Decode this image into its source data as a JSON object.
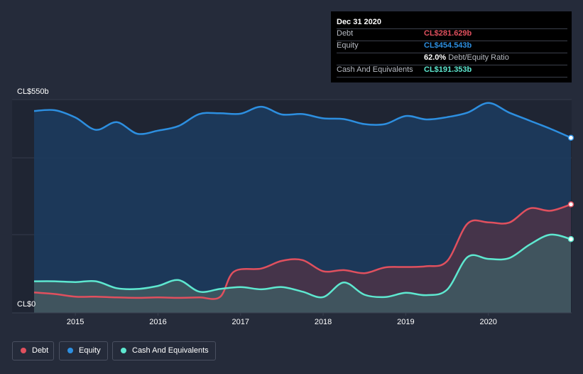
{
  "tooltip": {
    "date": "Dec 31 2020",
    "rows": [
      {
        "label": "Debt",
        "value": "CL$281.629b",
        "color": "#e0505e"
      },
      {
        "label": "Equity",
        "value": "CL$454.543b",
        "color": "#2d8fe0"
      },
      {
        "label": "",
        "value": "62.0%",
        "sub": "Debt/Equity Ratio",
        "color": "#ffffff"
      },
      {
        "label": "Cash And Equivalents",
        "value": "CL$191.353b",
        "color": "#5ee8d0"
      }
    ]
  },
  "chart_data": {
    "type": "area",
    "y_labels": {
      "top": "CL$550b",
      "bottom": "CL$0"
    },
    "ylim": [
      0,
      550
    ],
    "xlim": [
      2014.5,
      2021.0
    ],
    "x_ticks": [
      "2015",
      "2016",
      "2017",
      "2018",
      "2019",
      "2020"
    ],
    "series": [
      {
        "name": "Debt",
        "color": "#e0505e",
        "points": [
          [
            2014.5,
            53
          ],
          [
            2014.75,
            49
          ],
          [
            2015.0,
            42
          ],
          [
            2015.25,
            42
          ],
          [
            2015.5,
            40
          ],
          [
            2015.75,
            39
          ],
          [
            2016.0,
            40
          ],
          [
            2016.25,
            39
          ],
          [
            2016.5,
            40
          ],
          [
            2016.75,
            41
          ],
          [
            2016.92,
            107
          ],
          [
            2017.25,
            115
          ],
          [
            2017.5,
            135
          ],
          [
            2017.75,
            137
          ],
          [
            2018.0,
            108
          ],
          [
            2018.25,
            111
          ],
          [
            2018.5,
            103
          ],
          [
            2018.75,
            118
          ],
          [
            2019.0,
            119
          ],
          [
            2019.25,
            121
          ],
          [
            2019.5,
            134
          ],
          [
            2019.75,
            232
          ],
          [
            2020.0,
            235
          ],
          [
            2020.25,
            234
          ],
          [
            2020.5,
            271
          ],
          [
            2020.75,
            265
          ],
          [
            2021.0,
            281.6
          ]
        ]
      },
      {
        "name": "Equity",
        "color": "#2d8fe0",
        "points": [
          [
            2014.5,
            524
          ],
          [
            2014.75,
            526
          ],
          [
            2015.0,
            507
          ],
          [
            2015.25,
            475
          ],
          [
            2015.5,
            495
          ],
          [
            2015.75,
            465
          ],
          [
            2016.0,
            473
          ],
          [
            2016.25,
            485
          ],
          [
            2016.5,
            516
          ],
          [
            2016.75,
            518
          ],
          [
            2017.0,
            517
          ],
          [
            2017.25,
            535
          ],
          [
            2017.5,
            515
          ],
          [
            2017.75,
            516
          ],
          [
            2018.0,
            505
          ],
          [
            2018.25,
            503
          ],
          [
            2018.5,
            490
          ],
          [
            2018.75,
            490
          ],
          [
            2019.0,
            511
          ],
          [
            2019.25,
            502
          ],
          [
            2019.5,
            508
          ],
          [
            2019.75,
            520
          ],
          [
            2020.0,
            545
          ],
          [
            2020.25,
            520
          ],
          [
            2020.5,
            499
          ],
          [
            2020.75,
            478
          ],
          [
            2021.0,
            454.5
          ]
        ]
      },
      {
        "name": "Cash And Equivalents",
        "color": "#5ee8d0",
        "points": [
          [
            2014.5,
            82
          ],
          [
            2014.75,
            82
          ],
          [
            2015.0,
            80
          ],
          [
            2015.25,
            82
          ],
          [
            2015.5,
            64
          ],
          [
            2015.75,
            62
          ],
          [
            2016.0,
            70
          ],
          [
            2016.25,
            85
          ],
          [
            2016.5,
            55
          ],
          [
            2016.75,
            62
          ],
          [
            2017.0,
            67
          ],
          [
            2017.25,
            61
          ],
          [
            2017.5,
            67
          ],
          [
            2017.75,
            55
          ],
          [
            2018.0,
            41
          ],
          [
            2018.25,
            79
          ],
          [
            2018.5,
            47
          ],
          [
            2018.75,
            41
          ],
          [
            2019.0,
            52
          ],
          [
            2019.25,
            46
          ],
          [
            2019.5,
            60
          ],
          [
            2019.75,
            145
          ],
          [
            2020.0,
            140
          ],
          [
            2020.25,
            142
          ],
          [
            2020.5,
            177
          ],
          [
            2020.75,
            203
          ],
          [
            2021.0,
            191.4
          ]
        ]
      }
    ]
  }
}
